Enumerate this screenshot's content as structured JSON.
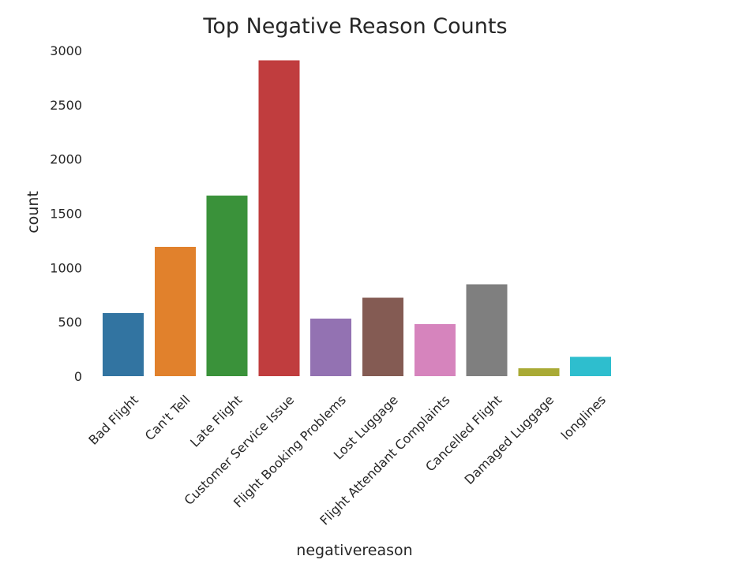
{
  "chart_data": {
    "type": "bar",
    "title": "Top Negative Reason Counts",
    "xlabel": "negativereason",
    "ylabel": "count",
    "categories": [
      "Bad Flight",
      "Can't Tell",
      "Late Flight",
      "Customer Service Issue",
      "Flight Booking Problems",
      "Lost Luggage",
      "Flight Attendant Complaints",
      "Cancelled Flight",
      "Damaged Luggage",
      "longlines"
    ],
    "values": [
      580,
      1190,
      1665,
      2910,
      529,
      724,
      481,
      847,
      74,
      178
    ],
    "colors": [
      "#3274a1",
      "#e1812c",
      "#3a923a",
      "#c03d3e",
      "#9372b2",
      "#845b53",
      "#d684bd",
      "#7f7f7f",
      "#a9aa35",
      "#2ebece"
    ],
    "yticks": [
      "0",
      "500",
      "1000",
      "1500",
      "2000",
      "2500",
      "3000"
    ],
    "ylim": [
      0,
      3000
    ],
    "grid": false,
    "legend": "none"
  }
}
